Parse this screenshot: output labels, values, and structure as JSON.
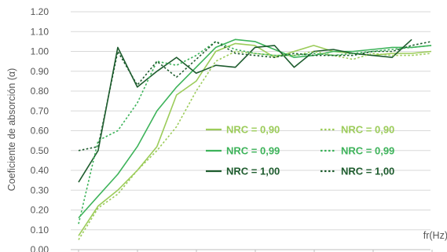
{
  "chart_data": {
    "type": "line",
    "title": "",
    "ylabel": "Coeficiente de absorción (α)",
    "xlabel": "fr(Hz)",
    "ylim": [
      0,
      1.2
    ],
    "yticks": [
      "0.00",
      "0.10",
      "0.20",
      "0.30",
      "0.40",
      "0.50",
      "0.60",
      "0.70",
      "0.80",
      "0.90",
      "1.00",
      "1.10",
      "1.20"
    ],
    "grid": true,
    "legend_position": "center-right",
    "x_points": 19,
    "series": [
      {
        "name": "NRC = 0,90",
        "color": "#9ccc5a",
        "dash": "solid",
        "values": [
          0.07,
          0.22,
          0.3,
          0.4,
          0.52,
          0.78,
          0.85,
          1.0,
          1.04,
          1.03,
          0.97,
          1.0,
          1.03,
          1.0,
          0.99,
          0.98,
          0.99,
          0.99,
          1.0
        ]
      },
      {
        "name": "NRC = 0,99",
        "color": "#3db35a",
        "dash": "solid",
        "values": [
          0.16,
          0.27,
          0.38,
          0.52,
          0.7,
          0.82,
          0.92,
          1.02,
          1.06,
          1.05,
          1.01,
          0.97,
          0.98,
          1.0,
          1.0,
          1.01,
          1.02,
          1.02,
          1.03
        ]
      },
      {
        "name": "NRC = 1,00",
        "color": "#1e5c2e",
        "dash": "solid",
        "values": [
          0.34,
          0.5,
          1.02,
          0.82,
          0.9,
          0.97,
          0.89,
          0.93,
          0.92,
          1.02,
          1.03,
          0.92,
          1.0,
          1.01,
          0.99,
          0.98,
          0.97,
          1.06,
          null
        ]
      },
      {
        "name": "NRC = 0,90",
        "color": "#9ccc5a",
        "dash": "dotted",
        "values": [
          0.05,
          0.21,
          0.28,
          0.4,
          0.5,
          0.62,
          0.8,
          0.95,
          1.0,
          0.99,
          0.98,
          0.98,
          1.0,
          0.98,
          0.96,
          0.99,
          0.98,
          0.98,
          0.99
        ]
      },
      {
        "name": "NRC = 0,99",
        "color": "#3db35a",
        "dash": "dotted",
        "values": [
          0.13,
          0.55,
          0.6,
          0.74,
          0.95,
          0.93,
          0.98,
          1.05,
          1.01,
          0.99,
          0.98,
          0.98,
          0.99,
          0.98,
          0.99,
          1.0,
          1.01,
          1.02,
          1.03
        ]
      },
      {
        "name": "NRC = 1,00",
        "color": "#1e5c2e",
        "dash": "dotted",
        "values": [
          0.5,
          0.52,
          1.0,
          0.83,
          0.95,
          0.87,
          0.96,
          1.05,
          0.99,
          0.98,
          0.97,
          0.99,
          0.98,
          0.98,
          0.98,
          1.0,
          1.0,
          1.03,
          1.05
        ]
      }
    ]
  }
}
